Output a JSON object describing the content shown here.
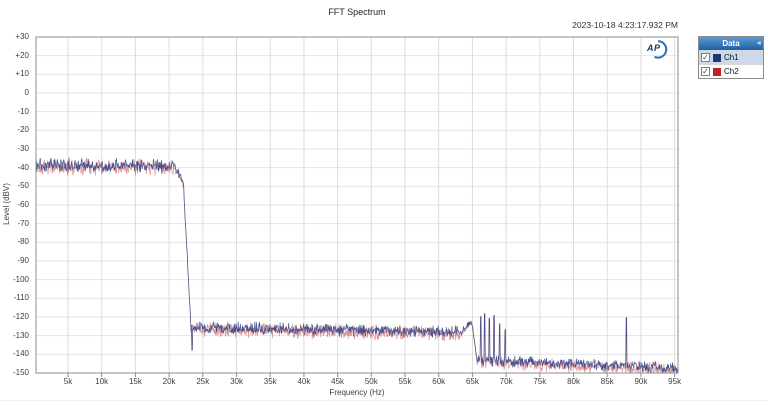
{
  "header": {
    "title": "FFT Spectrum",
    "timestamp": "2023-10-18 4:23:17.932 PM"
  },
  "logo": {
    "text": "AP"
  },
  "legend": {
    "header": "Data",
    "items": [
      {
        "label": "Ch1",
        "color": "#1f3575",
        "checked": true,
        "selected": true
      },
      {
        "label": "Ch2",
        "color": "#c42020",
        "checked": true,
        "selected": false
      }
    ]
  },
  "chart_data": {
    "type": "line",
    "title": "FFT Spectrum",
    "xlabel": "Frequency (Hz)",
    "ylabel": "Level (dBV)",
    "xlim_khz": [
      0.25,
      95.5
    ],
    "ylim_dbv": [
      -150,
      30
    ],
    "grid": true,
    "legend_position": "top-right-panel",
    "x_ticks": [
      {
        "khz": 5,
        "label": "5k"
      },
      {
        "khz": 10,
        "label": "10k"
      },
      {
        "khz": 15,
        "label": "15k"
      },
      {
        "khz": 20,
        "label": "20k"
      },
      {
        "khz": 25,
        "label": "25k"
      },
      {
        "khz": 30,
        "label": "30k"
      },
      {
        "khz": 35,
        "label": "35k"
      },
      {
        "khz": 40,
        "label": "40k"
      },
      {
        "khz": 45,
        "label": "45k"
      },
      {
        "khz": 50,
        "label": "50k"
      },
      {
        "khz": 55,
        "label": "55k"
      },
      {
        "khz": 60,
        "label": "60k"
      },
      {
        "khz": 65,
        "label": "65k"
      },
      {
        "khz": 70,
        "label": "70k"
      },
      {
        "khz": 75,
        "label": "75k"
      },
      {
        "khz": 80,
        "label": "80k"
      },
      {
        "khz": 85,
        "label": "85k"
      },
      {
        "khz": 90,
        "label": "90k"
      },
      {
        "khz": 95,
        "label": "95k"
      }
    ],
    "y_ticks": [
      {
        "dbv": 30,
        "label": "+30"
      },
      {
        "dbv": 20,
        "label": "+20"
      },
      {
        "dbv": 10,
        "label": "+10"
      },
      {
        "dbv": 0,
        "label": "0"
      },
      {
        "dbv": -10,
        "label": "-10"
      },
      {
        "dbv": -20,
        "label": "-20"
      },
      {
        "dbv": -30,
        "label": "-30"
      },
      {
        "dbv": -40,
        "label": "-40"
      },
      {
        "dbv": -50,
        "label": "-50"
      },
      {
        "dbv": -60,
        "label": "-60"
      },
      {
        "dbv": -70,
        "label": "-70"
      },
      {
        "dbv": -80,
        "label": "-80"
      },
      {
        "dbv": -90,
        "label": "-90"
      },
      {
        "dbv": -100,
        "label": "-100"
      },
      {
        "dbv": -110,
        "label": "-110"
      },
      {
        "dbv": -120,
        "label": "-120"
      },
      {
        "dbv": -130,
        "label": "-130"
      },
      {
        "dbv": -140,
        "label": "-140"
      },
      {
        "dbv": -150,
        "label": "-150"
      }
    ],
    "series": [
      {
        "name": "Ch1",
        "color": "#2b3d85",
        "opacity": 0.85,
        "seed": 20231018,
        "amp_scale": 1.0,
        "bias_db": 0
      },
      {
        "name": "Ch2",
        "color": "#c03a3a",
        "opacity": 0.55,
        "seed": 42317932,
        "amp_scale": 1.25,
        "bias_db": -1.0
      }
    ],
    "baseline_segments": [
      {
        "f0_khz": 0.25,
        "f1_khz": 20.7,
        "v0_dbv": -38.5,
        "v1_dbv": -39.0,
        "noise_amp_db": 4.2
      },
      {
        "f0_khz": 20.7,
        "f1_khz": 22.1,
        "v0_dbv": -39.0,
        "v1_dbv": -47.0,
        "noise_amp_db": 3.2
      },
      {
        "f0_khz": 22.1,
        "f1_khz": 23.25,
        "v0_dbv": -47.0,
        "v1_dbv": -126.0,
        "noise_amp_db": 1.5
      },
      {
        "f0_khz": 23.25,
        "f1_khz": 63.5,
        "v0_dbv": -125.5,
        "v1_dbv": -128.0,
        "noise_amp_db": 3.8
      },
      {
        "f0_khz": 63.5,
        "f1_khz": 64.9,
        "v0_dbv": -127.0,
        "v1_dbv": -122.5,
        "noise_amp_db": 2.2
      },
      {
        "f0_khz": 64.9,
        "f1_khz": 65.7,
        "v0_dbv": -122.5,
        "v1_dbv": -143.0,
        "noise_amp_db": 1.5
      },
      {
        "f0_khz": 65.7,
        "f1_khz": 95.5,
        "v0_dbv": -143.0,
        "v1_dbv": -147.5,
        "noise_amp_db": 3.4
      }
    ],
    "spikes": [
      {
        "f_khz": 23.4,
        "level_dbv": -138.0
      },
      {
        "f_khz": 66.2,
        "level_dbv": -120.0
      },
      {
        "f_khz": 66.8,
        "level_dbv": -118.5
      },
      {
        "f_khz": 67.5,
        "level_dbv": -121.0
      },
      {
        "f_khz": 68.2,
        "level_dbv": -119.5
      },
      {
        "f_khz": 69.0,
        "level_dbv": -124.0
      },
      {
        "f_khz": 69.8,
        "level_dbv": -127.0
      },
      {
        "f_khz": 87.8,
        "level_dbv": -120.5
      }
    ]
  }
}
